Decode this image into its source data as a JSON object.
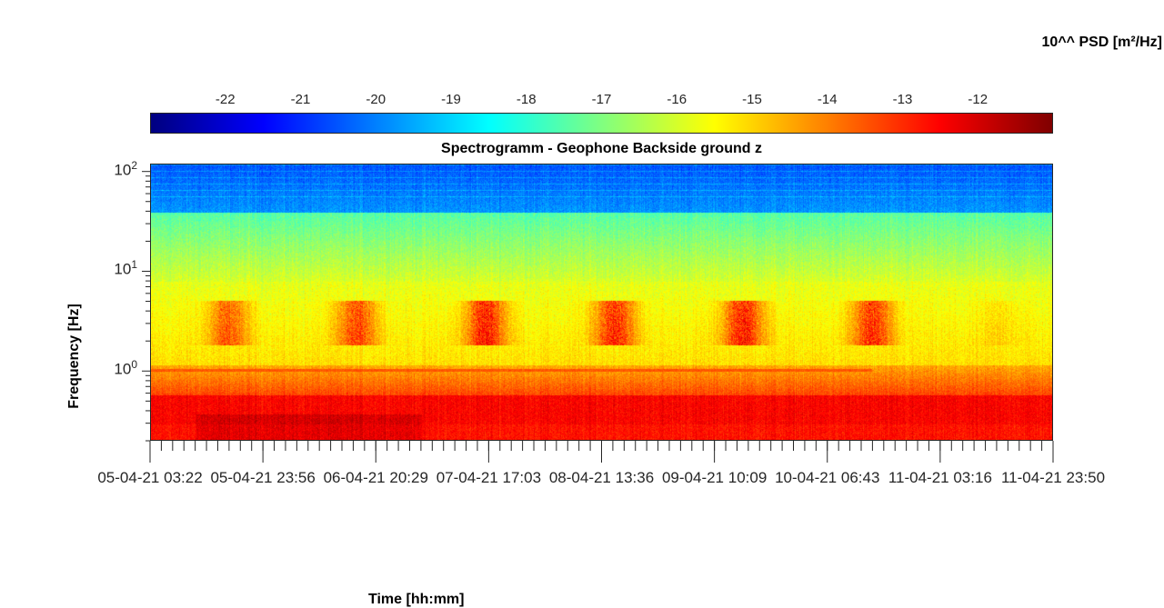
{
  "chart_data": {
    "type": "heatmap",
    "title": "Spectrogramm - Geophone Backside ground z",
    "xlabel": "Time [hh:mm]",
    "ylabel": "Frequency [Hz]",
    "colorbar_label": "10^^ PSD [m²/Hz]",
    "colorbar_ticks": [
      -22,
      -21,
      -20,
      -19,
      -18,
      -17,
      -16,
      -15,
      -14,
      -13,
      -12
    ],
    "colorbar_range": [
      -23.0,
      -11.0
    ],
    "colormap": "jet",
    "y_scale": "log",
    "ylim": [
      0.2,
      120
    ],
    "y_ticks": [
      {
        "base": "10",
        "exp": "0",
        "value": 1
      },
      {
        "base": "10",
        "exp": "1",
        "value": 10
      },
      {
        "base": "10",
        "exp": "2",
        "value": 100
      }
    ],
    "x_ticks": [
      "05-04-21 03:22",
      "05-04-21 23:56",
      "06-04-21 20:29",
      "07-04-21 17:03",
      "08-04-21 13:36",
      "09-04-21 10:09",
      "10-04-21 06:43",
      "11-04-21 03:16",
      "11-04-21 23:50"
    ],
    "features": {
      "high_freq_level": -20.5,
      "mid_freq_level": -17.5,
      "daytime_band_level": -14.0,
      "one_hz_line_level": -13.5,
      "low_freq_level": -12.5,
      "day_activity_windows": [
        {
          "label": "05-04-21",
          "value": 0.7
        },
        {
          "label": "06-04-21",
          "value": 0.8
        },
        {
          "label": "07-04-21",
          "value": 1.0
        },
        {
          "label": "08-04-21",
          "value": 0.95
        },
        {
          "label": "09-04-21",
          "value": 1.0
        },
        {
          "label": "10-04-21",
          "value": 0.9
        },
        {
          "label": "11-04-21",
          "value": 0.15
        }
      ]
    }
  }
}
